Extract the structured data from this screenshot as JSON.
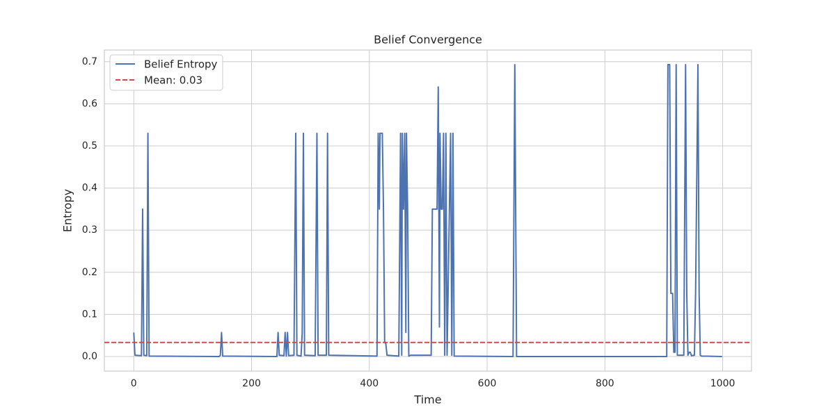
{
  "chart_data": {
    "type": "line",
    "title": "Belief Convergence",
    "x_label": "Time",
    "y_label": "Entropy",
    "x": [
      0,
      2,
      13,
      15,
      17,
      22,
      24,
      26,
      145,
      147,
      149,
      151,
      243,
      245,
      247,
      255,
      257,
      259,
      261,
      263,
      272,
      275,
      277,
      284,
      286,
      288,
      290,
      308,
      311,
      313,
      327,
      329,
      331,
      413,
      415,
      417,
      418,
      422,
      424,
      426,
      428,
      430,
      450,
      453,
      455,
      456,
      458,
      460,
      462,
      463,
      465,
      467,
      470,
      505,
      507,
      515,
      517,
      519,
      520,
      522,
      524,
      526,
      528,
      530,
      532,
      538,
      540,
      542,
      544,
      644,
      647,
      650,
      905,
      907,
      910,
      912,
      915,
      917,
      919,
      921,
      923,
      934,
      937,
      939,
      941,
      943,
      945,
      947,
      952,
      954,
      958,
      960,
      962,
      964,
      999
    ],
    "series": [
      {
        "name": "Belief Entropy",
        "color": "#4c72b0",
        "values": [
          0.057,
          0.003,
          0.002,
          0.35,
          0.003,
          0.002,
          0.53,
          0.001,
          0,
          0.003,
          0.057,
          0.001,
          0,
          0.057,
          0.003,
          0.002,
          0.057,
          0.001,
          0.057,
          0.002,
          0.003,
          0.53,
          0.003,
          0.001,
          0.057,
          0.53,
          0.003,
          0.002,
          0.53,
          0.003,
          0.003,
          0.53,
          0.003,
          0.001,
          0.53,
          0.35,
          0.53,
          0.53,
          0.35,
          0.035,
          0.03,
          0.003,
          0.001,
          0.53,
          0.003,
          0.53,
          0.35,
          0.53,
          0.057,
          0.53,
          0.35,
          0.001,
          0.003,
          0.003,
          0.35,
          0.35,
          0.64,
          0.07,
          0.53,
          0.35,
          0.35,
          0.53,
          0.003,
          0.53,
          0.003,
          0.53,
          0.003,
          0.53,
          0.001,
          0,
          0.693,
          0,
          0,
          0.693,
          0.693,
          0.15,
          0.15,
          0.01,
          0.01,
          0.693,
          0.003,
          0.003,
          0.693,
          0.15,
          0.003,
          0.01,
          0.01,
          0.002,
          0.003,
          0.15,
          0.693,
          0.15,
          0.003,
          0.001,
          0
        ]
      }
    ],
    "mean_line": {
      "name": "Mean: 0.03",
      "value": 0.0334,
      "color": "#c44e52"
    },
    "xlim": [
      -49.95,
      1048.95
    ],
    "ylim": [
      -0.0347,
      0.7277
    ],
    "xticks": [
      0,
      200,
      400,
      600,
      800,
      1000
    ],
    "yticks": [
      {
        "value": 0,
        "label": "0.0"
      },
      0.1,
      0.2,
      0.3,
      0.4,
      0.5,
      0.6,
      0.7
    ],
    "grid": true,
    "legend": "upper left"
  }
}
